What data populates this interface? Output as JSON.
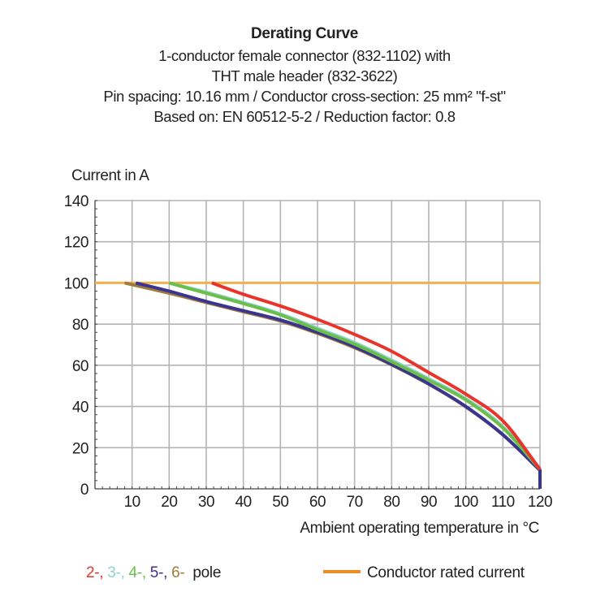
{
  "chart_data": {
    "type": "line",
    "title": "Derating Curve",
    "subtitle_lines": [
      "1-conductor female connector (832-1102) with",
      "THT male header (832-3622)",
      "Pin spacing: 10.16 mm / Conductor cross-section: 25 mm² \"f-st\"",
      "Based on: EN 60512-5-2 / Reduction factor: 0.8"
    ],
    "ylabel": "Current in A",
    "xlabel": "Ambient operating temperature in °C",
    "xlim": [
      0,
      120
    ],
    "ylim": [
      0,
      140
    ],
    "xticks": [
      10,
      20,
      30,
      40,
      50,
      60,
      70,
      80,
      90,
      100,
      110,
      120
    ],
    "yticks": [
      0,
      20,
      40,
      60,
      80,
      100,
      120,
      140
    ],
    "xtick_labels": [
      "10",
      "20",
      "30",
      "40",
      "50",
      "60",
      "70",
      "80",
      "90",
      "100",
      "110",
      "120"
    ],
    "ytick_labels": [
      "0",
      "20",
      "40",
      "60",
      "80",
      "100",
      "120",
      "140"
    ],
    "grid": true,
    "series": [
      {
        "name": "Conductor rated current",
        "color": "#f3b04a",
        "x": [
          0,
          120
        ],
        "y": [
          100,
          100
        ]
      },
      {
        "name": "6-pole",
        "color": "#a07c3a",
        "x": [
          8,
          20,
          30,
          40,
          50,
          60,
          70,
          80,
          90,
          100,
          110,
          120,
          120
        ],
        "y": [
          100,
          95,
          90.5,
          86,
          81.5,
          75.5,
          68.5,
          60.2,
          50.8,
          39.8,
          26.2,
          9,
          0
        ]
      },
      {
        "name": "5-pole",
        "color": "#3a3590",
        "x": [
          11,
          20,
          30,
          40,
          50,
          60,
          70,
          80,
          90,
          100,
          110,
          120,
          120
        ],
        "y": [
          100,
          96,
          91,
          86.5,
          82,
          76,
          69,
          60.5,
          51,
          40,
          26.3,
          9,
          0
        ]
      },
      {
        "name": "3-pole",
        "color": "#8fd3d0",
        "x": [
          20,
          30,
          40,
          50,
          60,
          70,
          80,
          90,
          100,
          110,
          120
        ],
        "y": [
          100,
          95.5,
          90.5,
          85,
          78,
          71,
          62.5,
          53.5,
          43.8,
          30.2,
          9.5
        ]
      },
      {
        "name": "4-pole",
        "color": "#6abf4b",
        "x": [
          20,
          30,
          40,
          50,
          60,
          70,
          80,
          90,
          100,
          110,
          120
        ],
        "y": [
          100,
          95,
          90,
          84.5,
          77.3,
          70.3,
          61.8,
          52.8,
          43.2,
          29.6,
          9.5
        ]
      },
      {
        "name": "2-pole",
        "color": "#e8342b",
        "x": [
          31.5,
          40,
          50,
          60,
          70,
          80,
          90,
          100,
          110,
          120
        ],
        "y": [
          100,
          94.5,
          88.8,
          82.3,
          75,
          66.8,
          56.5,
          46,
          33,
          9.5
        ]
      }
    ],
    "legend": {
      "pole_entries": [
        {
          "label": "2-",
          "color": "#e8342b"
        },
        {
          "label": "3-",
          "color": "#8fd3d0"
        },
        {
          "label": "4-",
          "color": "#6abf4b"
        },
        {
          "label": "5-",
          "color": "#3a3590"
        },
        {
          "label": "6-",
          "color": "#a07c3a"
        }
      ],
      "separator": ",",
      "pole_suffix": "pole",
      "rated_label": "Conductor rated current",
      "rated_color": "#f08a24",
      "placement": "bottom"
    }
  }
}
